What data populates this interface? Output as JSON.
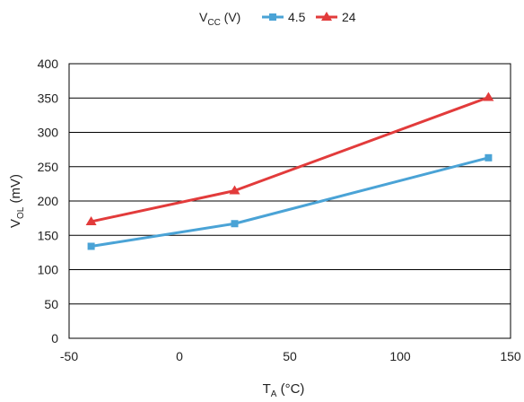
{
  "chart_data": {
    "type": "line",
    "legend": {
      "title_main": "V",
      "title_sub": "CC",
      "title_unit": " (V)",
      "placement": "top"
    },
    "xlabel": {
      "main": "T",
      "sub": "A",
      "unit": " (°C)"
    },
    "ylabel": {
      "main": "V",
      "sub": "OL",
      "unit": " (mV)"
    },
    "xlim": [
      -50,
      150
    ],
    "ylim": [
      0,
      400
    ],
    "x_ticks": [
      "-50",
      "0",
      "50",
      "100",
      "150"
    ],
    "y_ticks": [
      "0",
      "50",
      "100",
      "150",
      "200",
      "250",
      "300",
      "350",
      "400"
    ],
    "grid": "horizontal",
    "series": [
      {
        "name": "4.5",
        "color": "#4aa3d6",
        "marker": "square",
        "points": [
          [
            -40,
            134
          ],
          [
            25,
            167
          ],
          [
            140,
            263
          ]
        ]
      },
      {
        "name": "24",
        "color": "#e23b3b",
        "marker": "triangle",
        "points": [
          [
            -40,
            170
          ],
          [
            25,
            215
          ],
          [
            140,
            351
          ]
        ]
      }
    ]
  }
}
